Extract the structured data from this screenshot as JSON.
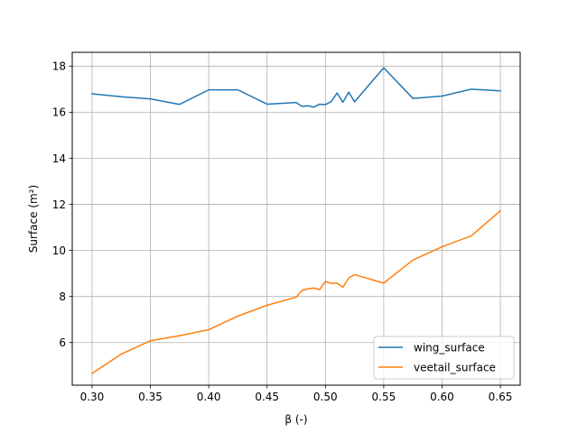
{
  "chart_data": {
    "type": "line",
    "xlabel": "β (-)",
    "ylabel": "Surface (m²)",
    "xlim": [
      0.283,
      0.667
    ],
    "ylim": [
      4.15,
      18.6
    ],
    "xticks": [
      0.3,
      0.35,
      0.4,
      0.45,
      0.5,
      0.55,
      0.6,
      0.65
    ],
    "xtick_labels": [
      "0.30",
      "0.35",
      "0.40",
      "0.45",
      "0.50",
      "0.55",
      "0.60",
      "0.65"
    ],
    "yticks": [
      6,
      8,
      10,
      12,
      14,
      16,
      18
    ],
    "ytick_labels": [
      "6",
      "8",
      "10",
      "12",
      "14",
      "16",
      "18"
    ],
    "grid": true,
    "legend": "bottom-right",
    "series": [
      {
        "name": "wing_surface",
        "color": "#1f77b4",
        "x": [
          0.3,
          0.325,
          0.35,
          0.375,
          0.4,
          0.425,
          0.45,
          0.475,
          0.48,
          0.485,
          0.49,
          0.495,
          0.5,
          0.505,
          0.51,
          0.515,
          0.52,
          0.525,
          0.55,
          0.575,
          0.6,
          0.625,
          0.65
        ],
        "y": [
          16.8,
          16.67,
          16.58,
          16.34,
          16.97,
          16.97,
          16.35,
          16.42,
          16.25,
          16.28,
          16.22,
          16.35,
          16.33,
          16.46,
          16.83,
          16.43,
          16.87,
          16.45,
          17.93,
          16.6,
          16.7,
          17.0,
          16.93
        ]
      },
      {
        "name": "veetail_surface",
        "color": "#ff7f0e",
        "x": [
          0.3,
          0.325,
          0.35,
          0.375,
          0.4,
          0.425,
          0.45,
          0.475,
          0.48,
          0.485,
          0.49,
          0.495,
          0.5,
          0.505,
          0.51,
          0.515,
          0.52,
          0.525,
          0.55,
          0.575,
          0.6,
          0.625,
          0.65
        ],
        "y": [
          4.66,
          5.5,
          6.08,
          6.3,
          6.56,
          7.15,
          7.62,
          7.97,
          8.27,
          8.33,
          8.37,
          8.3,
          8.65,
          8.57,
          8.58,
          8.4,
          8.8,
          8.95,
          8.58,
          9.58,
          10.16,
          10.63,
          11.72
        ]
      }
    ]
  }
}
